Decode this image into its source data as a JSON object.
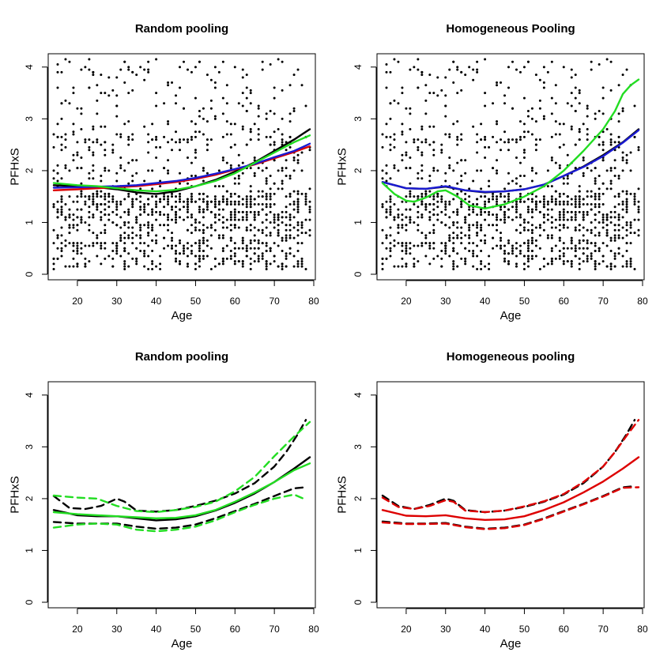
{
  "chart_data": [
    {
      "type": "scatter",
      "title": "Random pooling",
      "xlabel": "Age",
      "ylabel": "PFHxS",
      "xlim": [
        14,
        79
      ],
      "ylim": [
        0,
        4.15
      ],
      "xticks": [
        20,
        30,
        40,
        50,
        60,
        70,
        80
      ],
      "yticks": [
        0,
        1,
        2,
        3,
        4
      ],
      "colors": {
        "black": "#000000",
        "red": "#dd0000",
        "green": "#22dd22",
        "blue": "#1a1ad2"
      },
      "scatter_summary": {
        "n_points": 1300,
        "x_range": [
          14,
          79
        ],
        "y_range": [
          0.05,
          4.15
        ],
        "density": "dense below 1.5, sparse above 3"
      },
      "series": [
        {
          "name": "black",
          "style": "solid",
          "x": [
            14,
            20,
            25,
            30,
            35,
            40,
            45,
            50,
            55,
            60,
            65,
            70,
            75,
            79
          ],
          "y": [
            1.72,
            1.7,
            1.68,
            1.64,
            1.58,
            1.55,
            1.6,
            1.7,
            1.82,
            1.98,
            2.16,
            2.38,
            2.6,
            2.8
          ]
        },
        {
          "name": "red",
          "style": "solid",
          "x": [
            14,
            20,
            25,
            30,
            35,
            40,
            45,
            50,
            55,
            60,
            65,
            70,
            75,
            79
          ],
          "y": [
            1.62,
            1.64,
            1.66,
            1.68,
            1.7,
            1.74,
            1.78,
            1.84,
            1.92,
            2.02,
            2.12,
            2.24,
            2.36,
            2.47
          ]
        },
        {
          "name": "blue",
          "style": "solid",
          "x": [
            14,
            20,
            25,
            30,
            35,
            40,
            45,
            50,
            55,
            60,
            65,
            70,
            75,
            79
          ],
          "y": [
            1.67,
            1.68,
            1.69,
            1.7,
            1.72,
            1.76,
            1.8,
            1.86,
            1.94,
            2.03,
            2.13,
            2.26,
            2.38,
            2.52
          ]
        },
        {
          "name": "green",
          "style": "solid",
          "x": [
            14,
            20,
            25,
            30,
            35,
            40,
            45,
            50,
            55,
            60,
            65,
            70,
            75,
            79
          ],
          "y": [
            1.76,
            1.72,
            1.7,
            1.66,
            1.62,
            1.6,
            1.63,
            1.7,
            1.8,
            1.95,
            2.15,
            2.35,
            2.55,
            2.68
          ]
        }
      ]
    },
    {
      "type": "scatter",
      "title": "Homogeneous Pooling",
      "xlabel": "Age",
      "ylabel": "PFHxS",
      "xlim": [
        14,
        79
      ],
      "ylim": [
        0,
        4.15
      ],
      "xticks": [
        20,
        30,
        40,
        50,
        60,
        70,
        80
      ],
      "yticks": [
        0,
        1,
        2,
        3,
        4
      ],
      "colors": {
        "black": "#000000",
        "red": "#dd0000",
        "green": "#22dd22",
        "blue": "#1a1ad2"
      },
      "scatter_summary": {
        "n_points": 1300,
        "x_range": [
          14,
          79
        ],
        "y_range": [
          0.05,
          4.15
        ],
        "density": "dense below 1.5, sparse above 3"
      },
      "series": [
        {
          "name": "black",
          "style": "solid",
          "x": [
            14,
            20,
            25,
            30,
            35,
            40,
            45,
            50,
            55,
            60,
            65,
            70,
            75,
            79
          ],
          "y": [
            1.78,
            1.66,
            1.65,
            1.69,
            1.62,
            1.58,
            1.6,
            1.64,
            1.73,
            1.9,
            2.08,
            2.3,
            2.55,
            2.8
          ]
        },
        {
          "name": "blue",
          "style": "solid",
          "x": [
            14,
            20,
            25,
            30,
            35,
            40,
            45,
            50,
            55,
            60,
            65,
            70,
            75,
            79
          ],
          "y": [
            1.78,
            1.66,
            1.65,
            1.7,
            1.62,
            1.59,
            1.6,
            1.64,
            1.73,
            1.9,
            2.07,
            2.28,
            2.54,
            2.78
          ]
        },
        {
          "name": "green",
          "style": "solid",
          "x": [
            14,
            17,
            20,
            22,
            25,
            28,
            30,
            33,
            36,
            40,
            45,
            50,
            55,
            60,
            65,
            70,
            73,
            75,
            77,
            79
          ],
          "y": [
            1.76,
            1.55,
            1.42,
            1.4,
            1.48,
            1.6,
            1.62,
            1.5,
            1.33,
            1.27,
            1.35,
            1.5,
            1.7,
            2.0,
            2.38,
            2.8,
            3.15,
            3.48,
            3.65,
            3.76
          ]
        }
      ]
    },
    {
      "type": "line",
      "title": "Random pooling",
      "xlabel": "Age",
      "ylabel": "PFHxS",
      "xlim": [
        14,
        79
      ],
      "ylim": [
        0,
        4.15
      ],
      "xticks": [
        20,
        30,
        40,
        50,
        60,
        70,
        80
      ],
      "yticks": [
        0,
        1,
        2,
        3,
        4
      ],
      "colors": {
        "black": "#000000",
        "red": "#dd0000",
        "green": "#22dd22",
        "blue": "#1a1ad2"
      },
      "series": [
        {
          "name": "black estimate",
          "color": "black",
          "style": "solid",
          "x": [
            14,
            20,
            25,
            30,
            35,
            40,
            45,
            50,
            55,
            60,
            65,
            70,
            75,
            79
          ],
          "y": [
            1.78,
            1.68,
            1.66,
            1.66,
            1.62,
            1.58,
            1.6,
            1.66,
            1.77,
            1.92,
            2.1,
            2.32,
            2.58,
            2.8
          ]
        },
        {
          "name": "black upper",
          "color": "black",
          "style": "dashed",
          "x": [
            14,
            18,
            22,
            26,
            30,
            32,
            35,
            40,
            45,
            50,
            55,
            60,
            65,
            70,
            73,
            76,
            78
          ],
          "y": [
            2.05,
            1.82,
            1.8,
            1.86,
            2.0,
            1.94,
            1.77,
            1.75,
            1.78,
            1.86,
            1.96,
            2.1,
            2.3,
            2.62,
            2.9,
            3.25,
            3.52
          ]
        },
        {
          "name": "black lower",
          "color": "black",
          "style": "dashed",
          "x": [
            14,
            20,
            25,
            30,
            35,
            40,
            45,
            50,
            55,
            60,
            65,
            70,
            75,
            78
          ],
          "y": [
            1.55,
            1.52,
            1.52,
            1.52,
            1.46,
            1.42,
            1.44,
            1.5,
            1.62,
            1.76,
            1.9,
            2.05,
            2.2,
            2.22
          ]
        },
        {
          "name": "green estimate",
          "color": "green",
          "style": "solid",
          "x": [
            14,
            20,
            25,
            30,
            35,
            40,
            45,
            50,
            55,
            60,
            65,
            70,
            75,
            79
          ],
          "y": [
            1.74,
            1.7,
            1.68,
            1.66,
            1.64,
            1.62,
            1.63,
            1.68,
            1.78,
            1.94,
            2.12,
            2.32,
            2.55,
            2.68
          ]
        },
        {
          "name": "green upper",
          "color": "green",
          "style": "dashed",
          "x": [
            14,
            20,
            25,
            30,
            35,
            40,
            45,
            50,
            55,
            60,
            65,
            70,
            75,
            79
          ],
          "y": [
            2.06,
            2.02,
            2.0,
            1.86,
            1.76,
            1.74,
            1.78,
            1.84,
            1.94,
            2.14,
            2.42,
            2.82,
            3.2,
            3.48
          ]
        },
        {
          "name": "green lower",
          "color": "green",
          "style": "dashed",
          "x": [
            14,
            20,
            25,
            30,
            35,
            40,
            45,
            50,
            55,
            60,
            65,
            70,
            75,
            78
          ],
          "y": [
            1.44,
            1.5,
            1.52,
            1.5,
            1.4,
            1.37,
            1.4,
            1.46,
            1.58,
            1.74,
            1.88,
            2.0,
            2.08,
            1.98
          ]
        }
      ]
    },
    {
      "type": "line",
      "title": "Homogeneous pooling",
      "xlabel": "Age",
      "ylabel": "PFHxS",
      "xlim": [
        14,
        79
      ],
      "ylim": [
        0,
        4.15
      ],
      "xticks": [
        20,
        30,
        40,
        50,
        60,
        70,
        80
      ],
      "yticks": [
        0,
        1,
        2,
        3,
        4
      ],
      "colors": {
        "black": "#000000",
        "red": "#dd0000",
        "green": "#22dd22",
        "blue": "#1a1ad2"
      },
      "series": [
        {
          "name": "red estimate",
          "color": "red",
          "style": "solid",
          "x": [
            14,
            20,
            25,
            30,
            35,
            40,
            45,
            50,
            55,
            60,
            65,
            70,
            75,
            79
          ],
          "y": [
            1.78,
            1.67,
            1.66,
            1.68,
            1.62,
            1.59,
            1.6,
            1.66,
            1.78,
            1.93,
            2.12,
            2.33,
            2.58,
            2.8
          ]
        },
        {
          "name": "black upper",
          "color": "black",
          "style": "dashed",
          "x": [
            14,
            18,
            22,
            26,
            30,
            32,
            35,
            40,
            45,
            50,
            55,
            60,
            65,
            70,
            73,
            76,
            78
          ],
          "y": [
            2.06,
            1.86,
            1.8,
            1.88,
            2.0,
            1.96,
            1.78,
            1.74,
            1.77,
            1.84,
            1.94,
            2.08,
            2.3,
            2.62,
            2.9,
            3.25,
            3.52
          ]
        },
        {
          "name": "red upper",
          "color": "red",
          "style": "dashed",
          "x": [
            14,
            18,
            22,
            26,
            30,
            32,
            35,
            40,
            45,
            50,
            55,
            60,
            65,
            70,
            73,
            76,
            79
          ],
          "y": [
            2.02,
            1.84,
            1.8,
            1.86,
            1.97,
            1.94,
            1.77,
            1.74,
            1.77,
            1.85,
            1.95,
            2.09,
            2.32,
            2.62,
            2.9,
            3.22,
            3.52
          ]
        },
        {
          "name": "black lower",
          "color": "black",
          "style": "dashed",
          "x": [
            14,
            20,
            25,
            30,
            35,
            40,
            45,
            50,
            55,
            60,
            65,
            70,
            75,
            78
          ],
          "y": [
            1.56,
            1.52,
            1.52,
            1.53,
            1.46,
            1.42,
            1.44,
            1.5,
            1.62,
            1.76,
            1.9,
            2.05,
            2.22,
            2.24
          ]
        },
        {
          "name": "red lower",
          "color": "red",
          "style": "dashed",
          "x": [
            14,
            20,
            25,
            30,
            35,
            40,
            45,
            50,
            55,
            60,
            65,
            70,
            75,
            79
          ],
          "y": [
            1.54,
            1.51,
            1.51,
            1.52,
            1.45,
            1.41,
            1.43,
            1.49,
            1.61,
            1.75,
            1.89,
            2.04,
            2.21,
            2.22
          ]
        }
      ]
    }
  ]
}
